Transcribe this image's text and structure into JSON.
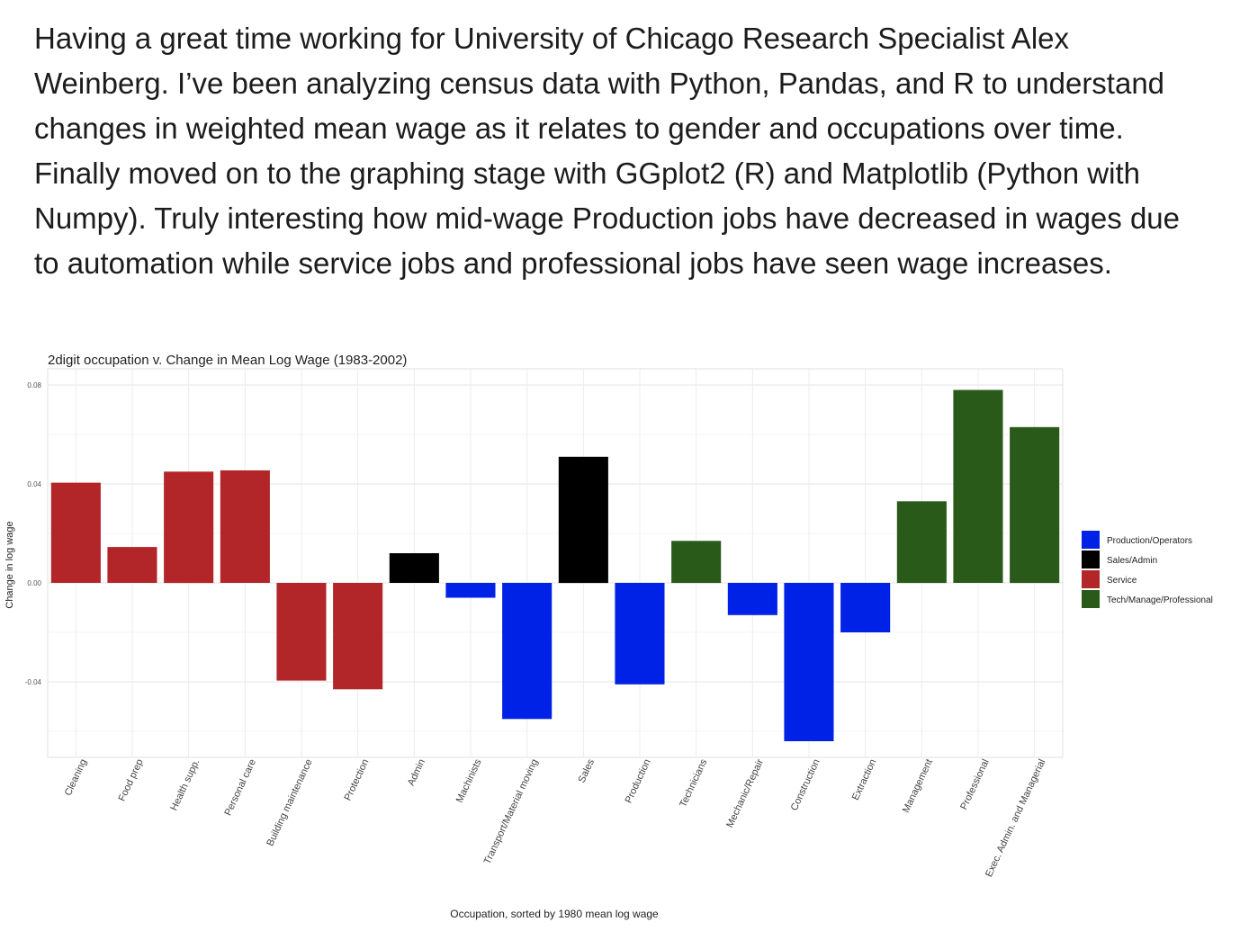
{
  "post": {
    "text": "Having a great time working for University of Chicago Research Specialist Alex Weinberg. I’ve been analyzing census data with Python, Pandas, and R to understand changes in weighted mean wage as it relates to gender and occupations over time. Finally moved on to the graphing stage with GGplot2 (R) and Matplotlib (Python with Numpy). Truly interesting how mid-wage Production jobs have decreased in wages due to automation while service jobs and professional jobs have seen wage increases."
  },
  "chart_data": {
    "type": "bar",
    "title": "2digit occupation v. Change in Mean Log Wage (1983-2002)",
    "xlabel": "Occupation, sorted by 1980 mean log wage",
    "ylabel": "Change in log wage",
    "ylim": [
      -0.07,
      0.08
    ],
    "yticks": [
      0.08,
      0.04,
      0.0,
      -0.04
    ],
    "ytick_labels": [
      "0.08",
      "0.04",
      "0.00",
      "-0.04"
    ],
    "grid": true,
    "legend_position": "right",
    "categories": [
      "Cleaning",
      "Food prep",
      "Health supp.",
      "Personal care",
      "Building maintenance",
      "Protection",
      "Admin",
      "Machinists",
      "Transport/Material moving",
      "Sales",
      "Production",
      "Technicians",
      "Mechanic/Repair",
      "Construction",
      "Extraction",
      "Management",
      "Professional",
      "Exec. Admin. and Managerial"
    ],
    "values": [
      0.0405,
      0.0145,
      0.045,
      0.0455,
      -0.0395,
      -0.043,
      0.012,
      -0.006,
      -0.055,
      0.051,
      -0.041,
      0.017,
      -0.013,
      -0.064,
      -0.02,
      0.033,
      0.078,
      0.063
    ],
    "groups": [
      "Service",
      "Service",
      "Service",
      "Service",
      "Service",
      "Service",
      "Sales/Admin",
      "Production/Operators",
      "Production/Operators",
      "Sales/Admin",
      "Production/Operators",
      "Tech/Manage/Professional",
      "Production/Operators",
      "Production/Operators",
      "Production/Operators",
      "Tech/Manage/Professional",
      "Tech/Manage/Professional",
      "Tech/Manage/Professional"
    ],
    "legend": [
      {
        "name": "Production/Operators",
        "color": "#0022e6"
      },
      {
        "name": "Sales/Admin",
        "color": "#000000"
      },
      {
        "name": "Service",
        "color": "#b2262a"
      },
      {
        "name": "Tech/Manage/Professional",
        "color": "#2a5a1a"
      }
    ]
  }
}
